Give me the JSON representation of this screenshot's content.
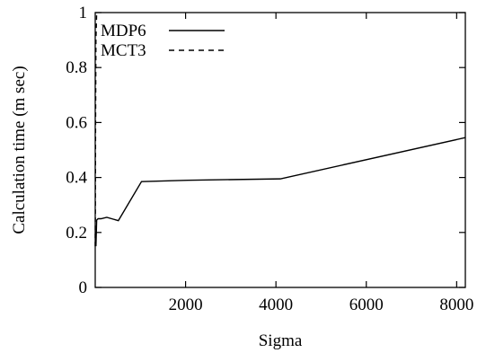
{
  "chart_data": {
    "type": "line",
    "xlabel": "Sigma",
    "ylabel": "Calculation time (m sec)",
    "xlim": [
      0,
      8192
    ],
    "ylim": [
      0,
      1
    ],
    "xticks": [
      2000,
      4000,
      6000,
      8000
    ],
    "xtick_labels": [
      "2000",
      "4000",
      "6000",
      "8000"
    ],
    "yticks": [
      0,
      0.2,
      0.4,
      0.6,
      0.8,
      1
    ],
    "ytick_labels": [
      "0",
      "0.2",
      "0.4",
      "0.6",
      "0.8",
      "1"
    ],
    "grid": false,
    "legend_position": "top-left",
    "series": [
      {
        "name": "MDP6",
        "style": "solid",
        "color": "#000000",
        "x": [
          16,
          32,
          64,
          128,
          256,
          512,
          1024,
          2048,
          4096,
          8192
        ],
        "y": [
          0.15,
          0.245,
          0.25,
          0.25,
          0.255,
          0.243,
          0.385,
          0.39,
          0.395,
          0.545
        ]
      },
      {
        "name": "MCT3",
        "style": "dashed",
        "color": "#000000",
        "x": [
          0,
          4,
          8,
          16,
          32
        ],
        "y": [
          0.15,
          0.3,
          0.6,
          0.9,
          1.0
        ]
      }
    ]
  }
}
